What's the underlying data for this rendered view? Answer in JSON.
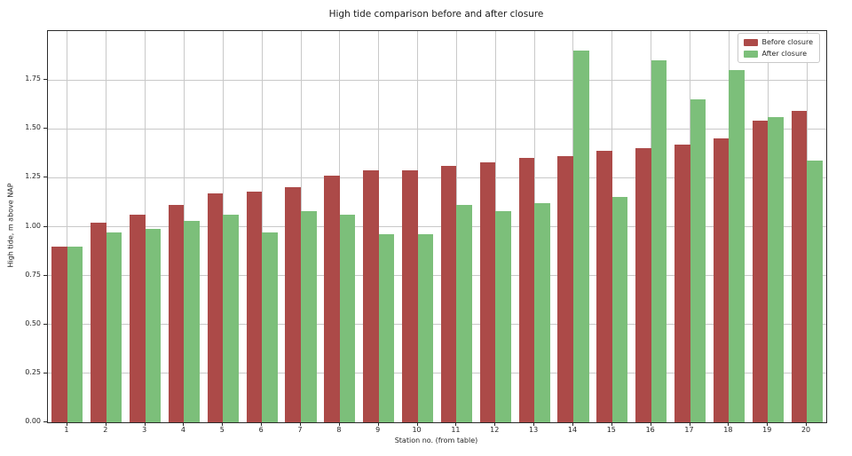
{
  "chart_data": {
    "type": "bar",
    "title": "High tide comparison before and after closure",
    "xlabel": "Station no. (from table)",
    "ylabel": "High tide, m above NAP",
    "categories": [
      "1",
      "2",
      "3",
      "4",
      "5",
      "6",
      "7",
      "8",
      "9",
      "10",
      "11",
      "12",
      "13",
      "14",
      "15",
      "16",
      "17",
      "18",
      "19",
      "20"
    ],
    "series": [
      {
        "name": "Before closure",
        "color": "#ac4a48",
        "values": [
          0.9,
          1.02,
          1.06,
          1.11,
          1.17,
          1.18,
          1.2,
          1.26,
          1.29,
          1.29,
          1.31,
          1.33,
          1.35,
          1.36,
          1.39,
          1.4,
          1.42,
          1.45,
          1.54,
          1.59
        ]
      },
      {
        "name": "After closure",
        "color": "#7cbf7a",
        "values": [
          0.9,
          0.97,
          0.99,
          1.03,
          1.06,
          0.97,
          1.08,
          1.06,
          0.96,
          0.96,
          1.11,
          1.08,
          1.12,
          1.9,
          1.15,
          1.85,
          1.65,
          1.8,
          1.56,
          1.34
        ]
      }
    ],
    "ylim": [
      0,
      2.0
    ],
    "yticks": [
      {
        "value": 0.0,
        "label": "0.00"
      },
      {
        "value": 0.25,
        "label": "0.25"
      },
      {
        "value": 0.5,
        "label": "0.50"
      },
      {
        "value": 0.75,
        "label": "0.75"
      },
      {
        "value": 1.0,
        "label": "1.00"
      },
      {
        "value": 1.25,
        "label": "1.25"
      },
      {
        "value": 1.5,
        "label": "1.50"
      },
      {
        "value": 1.75,
        "label": "1.75"
      }
    ],
    "grid": true,
    "legend_position": "upper right",
    "grid_color": "#c9c9c9",
    "spine_color": "#2b2b2b",
    "text_color": "#262626"
  }
}
